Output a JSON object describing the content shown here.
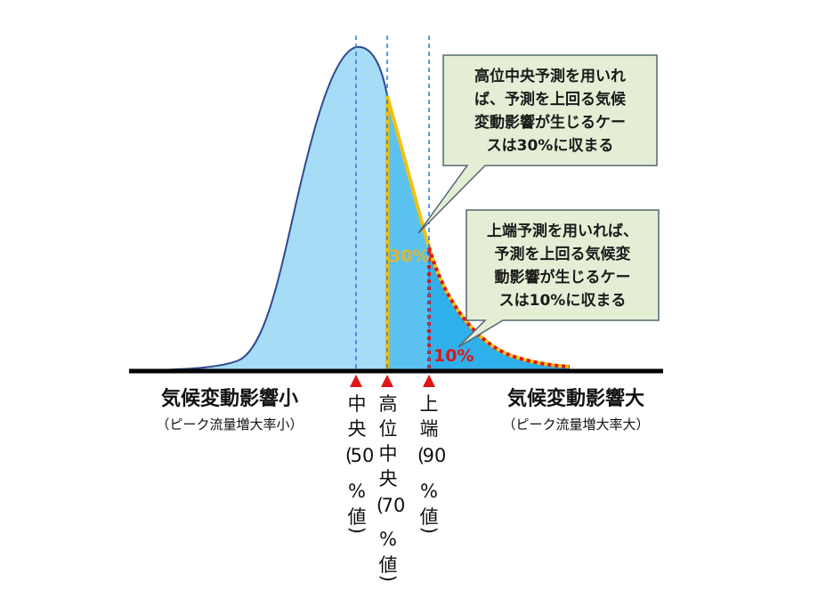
{
  "callouts": {
    "high_central": {
      "lines": [
        "高位中央予測を用いれ",
        "ば、予測を上回る気候",
        "変動影響が生じるケー",
        "スは30%に収まる"
      ]
    },
    "upper_end": {
      "lines": [
        "上端予測を用いれば、",
        "予測を上回る気候変",
        "動影響が生じるケー",
        "スは10%に収まる"
      ]
    }
  },
  "area_labels": {
    "p30": "30%",
    "p10": "10%"
  },
  "axis": {
    "left_title": "気候変動影響小",
    "left_sub": "（ピーク流量増大率小）",
    "right_title": "気候変動影響大",
    "right_sub": "（ピーク流量増大率大）"
  },
  "markers": [
    {
      "name": "central",
      "chars": [
        "中",
        "央",
        "(",
        "50",
        "%",
        "値",
        ")"
      ]
    },
    {
      "name": "high-central",
      "chars": [
        "高",
        "位",
        "中",
        "央",
        "(",
        "70",
        "%",
        "値",
        ")"
      ]
    },
    {
      "name": "upper-end",
      "chars": [
        "上",
        "端",
        "(",
        "90",
        "%",
        "値",
        ")"
      ]
    }
  ],
  "colors": {
    "curve_fill": "#a6dcf6",
    "tail30_fill": "#5bc2ef",
    "tail10_fill": "#2fb0ea",
    "curve_stroke": "#2f4a8f",
    "yellow_outline": "#f2c10f",
    "red_dotted": "#e01515",
    "marker_red": "#e01515",
    "callout_fill": "#e3eed5",
    "callout_stroke": "#56666f",
    "label30": "#d9b63a",
    "label10": "#e01515",
    "dashed_line": "#2a7ad6"
  }
}
